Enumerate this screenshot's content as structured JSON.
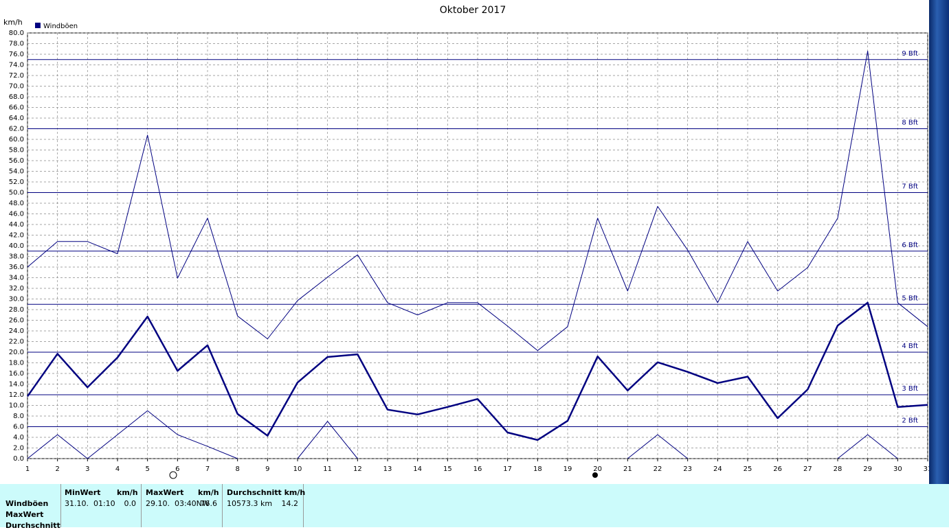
{
  "chart_data": {
    "type": "line",
    "title": "Oktober 2017",
    "y_unit": "km/h",
    "legend": "Windböen",
    "legend_color": "#000080",
    "grid": true,
    "x": [
      1,
      2,
      3,
      4,
      5,
      6,
      7,
      8,
      9,
      10,
      11,
      12,
      13,
      14,
      15,
      16,
      17,
      18,
      19,
      20,
      21,
      22,
      23,
      24,
      25,
      26,
      27,
      28,
      29,
      30,
      31
    ],
    "xlim": [
      1,
      31
    ],
    "ylim": [
      0,
      80
    ],
    "yticks": [
      {
        "value": 0,
        "label": "0.0"
      },
      {
        "value": 2,
        "label": "2.0"
      },
      {
        "value": 4,
        "label": "4.0"
      },
      {
        "value": 6,
        "label": "6.0"
      },
      {
        "value": 8,
        "label": "8.0"
      },
      {
        "value": 10,
        "label": "10.0"
      },
      {
        "value": 12,
        "label": "12.0"
      },
      {
        "value": 14,
        "label": "14.0"
      },
      {
        "value": 16,
        "label": "16.0"
      },
      {
        "value": 18,
        "label": "18.0"
      },
      {
        "value": 20,
        "label": "20.0"
      },
      {
        "value": 22,
        "label": "22.0"
      },
      {
        "value": 24,
        "label": "24.0"
      },
      {
        "value": 26,
        "label": "26.0"
      },
      {
        "value": 28,
        "label": "28.0"
      },
      {
        "value": 30,
        "label": "30.0"
      },
      {
        "value": 32,
        "label": "32.0"
      },
      {
        "value": 34,
        "label": "34.0"
      },
      {
        "value": 36,
        "label": "36.0"
      },
      {
        "value": 38,
        "label": "38.0"
      },
      {
        "value": 40,
        "label": "40.0"
      },
      {
        "value": 42,
        "label": "42.0"
      },
      {
        "value": 44,
        "label": "44.0"
      },
      {
        "value": 46,
        "label": "46.0"
      },
      {
        "value": 48,
        "label": "48.0"
      },
      {
        "value": 50,
        "label": "50.0"
      },
      {
        "value": 52,
        "label": "52.0"
      },
      {
        "value": 54,
        "label": "54.0"
      },
      {
        "value": 56,
        "label": "56.0"
      },
      {
        "value": 58,
        "label": "58.0"
      },
      {
        "value": 60,
        "label": "60.0"
      },
      {
        "value": 62,
        "label": "62.0"
      },
      {
        "value": 64,
        "label": "64.0"
      },
      {
        "value": 66,
        "label": "66.0"
      },
      {
        "value": 68,
        "label": "68.0"
      },
      {
        "value": 70,
        "label": "70.0"
      },
      {
        "value": 72,
        "label": "72.0"
      },
      {
        "value": 74,
        "label": "74.0"
      },
      {
        "value": 76,
        "label": "76.0"
      },
      {
        "value": 78,
        "label": "78.0"
      },
      {
        "value": 80,
        "label": "80.0"
      }
    ],
    "beaufort": [
      {
        "value": 6,
        "label": "2 Bft"
      },
      {
        "value": 12,
        "label": "3 Bft"
      },
      {
        "value": 20,
        "label": "4 Bft"
      },
      {
        "value": 29,
        "label": "5 Bft"
      },
      {
        "value": 39,
        "label": "6 Bft"
      },
      {
        "value": 50,
        "label": "7 Bft"
      },
      {
        "value": 62,
        "label": "8 Bft"
      },
      {
        "value": 75,
        "label": "9 Bft"
      }
    ],
    "series": [
      {
        "color": "#000080",
        "width": 1,
        "values": [
          36,
          40.8,
          40.8,
          38.5,
          60.8,
          33.9,
          45.2,
          26.8,
          22.5,
          29.7,
          34.1,
          38.3,
          29.3,
          27,
          29.3,
          29.3,
          24.9,
          20.3,
          24.8,
          45.2,
          31.5,
          47.4,
          39.2,
          29.3,
          40.8,
          31.5,
          35.9,
          45.2,
          76.6,
          29.3,
          24.8
        ]
      },
      {
        "color": "#000080",
        "width": 2.5,
        "values": [
          11.7,
          19.7,
          13.4,
          19,
          26.7,
          16.5,
          21.3,
          8.4,
          4.3,
          14.3,
          19.1,
          19.6,
          9.2,
          8.3,
          9.7,
          11.2,
          4.9,
          3.5,
          7.1,
          19.2,
          12.8,
          18.1,
          16.3,
          14.2,
          15.4,
          7.6,
          13,
          25,
          29.3,
          9.7,
          10.1
        ]
      },
      {
        "color": "#000080",
        "width": 1,
        "values": [
          0,
          4.5,
          0,
          4.5,
          9,
          4.5,
          2.3,
          0,
          null,
          0,
          7,
          0,
          null,
          null,
          null,
          null,
          null,
          null,
          null,
          null,
          0,
          4.5,
          0,
          null,
          null,
          null,
          null,
          0,
          4.5,
          0,
          null
        ]
      }
    ]
  },
  "table": {
    "row_labels": [
      "Windböen",
      "MaxWert",
      "Durchschnitt"
    ],
    "headers": [
      "MinWert",
      "km/h",
      "MaxWert",
      "km/h",
      "Durchschnitt km/h"
    ],
    "row": [
      "31.10.  01:10",
      "0.0",
      "29.10.  03:40NW",
      "76.6",
      "10573.3 km",
      "14.2"
    ]
  }
}
